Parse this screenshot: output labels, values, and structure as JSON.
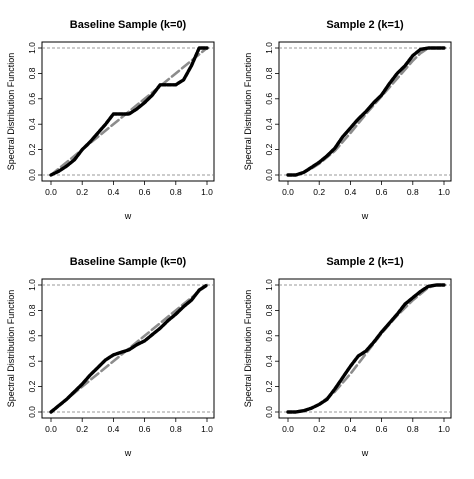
{
  "chart_data": [
    {
      "type": "line",
      "title": "Baseline Sample (k=0)",
      "xlabel": "w",
      "ylabel": "Spectral Distribution Function",
      "xlim": [
        0.0,
        1.0
      ],
      "ylim": [
        0.0,
        1.0
      ],
      "xticks": [
        "0.0",
        "0.2",
        "0.4",
        "0.6",
        "0.8",
        "1.0"
      ],
      "yticks": [
        "0.0",
        "0.2",
        "0.4",
        "0.6",
        "0.8",
        "1.0"
      ],
      "reference_lines_y": [
        0,
        1
      ],
      "grid": false,
      "series": [
        {
          "style": "thick black dashed (sample estimate)",
          "color": "#000000",
          "x": [
            0.0,
            0.05,
            0.1,
            0.15,
            0.2,
            0.25,
            0.3,
            0.35,
            0.4,
            0.5,
            0.55,
            0.6,
            0.65,
            0.7,
            0.75,
            0.8,
            0.85,
            0.9,
            0.95,
            1.0
          ],
          "y": [
            0.0,
            0.03,
            0.07,
            0.12,
            0.2,
            0.26,
            0.33,
            0.4,
            0.48,
            0.48,
            0.52,
            0.57,
            0.63,
            0.71,
            0.71,
            0.71,
            0.75,
            0.86,
            1.0,
            1.0
          ]
        },
        {
          "style": "gray dashed (reference)",
          "color": "#8c8c8c",
          "x": [
            0.0,
            0.5,
            1.0
          ],
          "y": [
            0.0,
            0.5,
            1.0
          ]
        }
      ]
    },
    {
      "type": "line",
      "title": "Sample 2 (k=1)",
      "xlabel": "w",
      "ylabel": "Spectral Distribution Function",
      "xlim": [
        0.0,
        1.0
      ],
      "ylim": [
        0.0,
        1.0
      ],
      "xticks": [
        "0.0",
        "0.2",
        "0.4",
        "0.6",
        "0.8",
        "1.0"
      ],
      "yticks": [
        "0.0",
        "0.2",
        "0.4",
        "0.6",
        "0.8",
        "1.0"
      ],
      "reference_lines_y": [
        0,
        1
      ],
      "grid": false,
      "series": [
        {
          "style": "thick black dashed (sample estimate)",
          "color": "#000000",
          "x": [
            0.0,
            0.05,
            0.1,
            0.15,
            0.2,
            0.25,
            0.3,
            0.35,
            0.4,
            0.45,
            0.5,
            0.55,
            0.6,
            0.65,
            0.7,
            0.75,
            0.8,
            0.85,
            0.9,
            1.0
          ],
          "y": [
            0.0,
            0.0,
            0.02,
            0.06,
            0.1,
            0.15,
            0.21,
            0.3,
            0.37,
            0.44,
            0.5,
            0.57,
            0.63,
            0.72,
            0.8,
            0.86,
            0.94,
            0.99,
            1.0,
            1.0
          ]
        },
        {
          "style": "gray dashed (reference)",
          "color": "#8c8c8c",
          "x": [
            0.0,
            0.05,
            0.1,
            0.15,
            0.2,
            0.3,
            0.4,
            0.5,
            0.6,
            0.7,
            0.8,
            0.85,
            0.9,
            1.0
          ],
          "y": [
            0.0,
            0.0,
            0.02,
            0.05,
            0.09,
            0.19,
            0.33,
            0.48,
            0.62,
            0.76,
            0.9,
            0.96,
            1.0,
            1.0
          ]
        }
      ]
    },
    {
      "type": "line",
      "title": "Baseline Sample (k=0)",
      "xlabel": "w",
      "ylabel": "Spectral Distribution Function",
      "xlim": [
        0.0,
        1.0
      ],
      "ylim": [
        0.0,
        1.0
      ],
      "xticks": [
        "0.0",
        "0.2",
        "0.4",
        "0.6",
        "0.8",
        "1.0"
      ],
      "yticks": [
        "0.0",
        "0.2",
        "0.4",
        "0.6",
        "0.8",
        "1.0"
      ],
      "reference_lines_y": [
        0,
        1
      ],
      "grid": false,
      "series": [
        {
          "style": "thick black dashed (sample estimate)",
          "color": "#000000",
          "x": [
            0.0,
            0.05,
            0.1,
            0.15,
            0.2,
            0.25,
            0.3,
            0.35,
            0.4,
            0.45,
            0.5,
            0.55,
            0.6,
            0.65,
            0.7,
            0.75,
            0.8,
            0.85,
            0.9,
            0.95,
            1.0
          ],
          "y": [
            0.0,
            0.05,
            0.1,
            0.16,
            0.22,
            0.29,
            0.35,
            0.41,
            0.45,
            0.47,
            0.49,
            0.53,
            0.56,
            0.61,
            0.66,
            0.72,
            0.77,
            0.83,
            0.88,
            0.96,
            1.0
          ]
        },
        {
          "style": "gray dashed (reference)",
          "color": "#8c8c8c",
          "x": [
            0.0,
            0.5,
            1.0
          ],
          "y": [
            0.0,
            0.5,
            1.0
          ]
        }
      ]
    },
    {
      "type": "line",
      "title": "Sample 2 (k=1)",
      "xlabel": "w",
      "ylabel": "Spectral Distribution Function",
      "xlim": [
        0.0,
        1.0
      ],
      "ylim": [
        0.0,
        1.0
      ],
      "xticks": [
        "0.0",
        "0.2",
        "0.4",
        "0.6",
        "0.8",
        "1.0"
      ],
      "yticks": [
        "0.0",
        "0.2",
        "0.4",
        "0.6",
        "0.8",
        "1.0"
      ],
      "reference_lines_y": [
        0,
        1
      ],
      "grid": false,
      "series": [
        {
          "style": "thick black dashed (sample estimate)",
          "color": "#000000",
          "x": [
            0.0,
            0.05,
            0.1,
            0.15,
            0.2,
            0.25,
            0.3,
            0.35,
            0.4,
            0.45,
            0.5,
            0.55,
            0.6,
            0.65,
            0.7,
            0.75,
            0.8,
            0.85,
            0.9,
            0.95,
            1.0
          ],
          "y": [
            0.0,
            0.0,
            0.01,
            0.03,
            0.06,
            0.1,
            0.18,
            0.27,
            0.36,
            0.44,
            0.48,
            0.55,
            0.63,
            0.7,
            0.77,
            0.85,
            0.9,
            0.95,
            0.99,
            1.0,
            1.0
          ]
        },
        {
          "style": "gray dashed (reference)",
          "color": "#8c8c8c",
          "x": [
            0.0,
            0.05,
            0.1,
            0.15,
            0.2,
            0.3,
            0.4,
            0.5,
            0.6,
            0.7,
            0.8,
            0.9,
            0.95,
            1.0
          ],
          "y": [
            0.0,
            0.0,
            0.01,
            0.03,
            0.06,
            0.16,
            0.3,
            0.46,
            0.62,
            0.76,
            0.88,
            0.98,
            1.0,
            1.0
          ]
        }
      ]
    }
  ]
}
